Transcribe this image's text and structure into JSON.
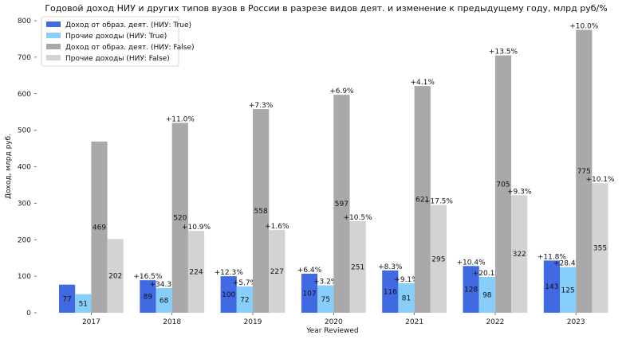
{
  "chart_data": {
    "type": "bar",
    "title": "Годовой доход НИУ и других типов вузов в России в разрезе видов деят. и изменение к предыдущему году, млрд руб/%",
    "xlabel": "Year Reviewed",
    "ylabel": "Доход, млрд руб.",
    "ylim": [
      0,
      800
    ],
    "yticks": [
      0,
      100,
      200,
      300,
      400,
      500,
      600,
      700,
      800
    ],
    "grid": false,
    "legend_position": "top-left",
    "categories": [
      "2017",
      "2018",
      "2019",
      "2020",
      "2021",
      "2022",
      "2023"
    ],
    "series": [
      {
        "name": "Доход от образ. деят. (НИУ: True)",
        "color": "#4169e1",
        "values": [
          77,
          89,
          100,
          107,
          116,
          128,
          143
        ],
        "value_labels": [
          "77",
          "89",
          "100",
          "107",
          "116",
          "128",
          "143"
        ],
        "change_labels": [
          "",
          "+16.5%",
          "+12.3%",
          "+6.4%",
          "+8.3%",
          "+10.4%",
          "+11.8%"
        ]
      },
      {
        "name": "Прочие доходы (НИУ: True)",
        "color": "#87cefa",
        "values": [
          51,
          68,
          72,
          75,
          81,
          98,
          125
        ],
        "value_labels": [
          "51",
          "68",
          "72",
          "75",
          "81",
          "98",
          "125"
        ],
        "change_labels": [
          "",
          "+34.3%",
          "+5.7%",
          "+3.2%",
          "+9.1%",
          "+20.1%",
          "+28.4%"
        ]
      },
      {
        "name": "Доход от образ. деят. (НИУ: False)",
        "color": "#a9a9a9",
        "values": [
          469,
          520,
          558,
          597,
          621,
          705,
          775
        ],
        "value_labels": [
          "469",
          "520",
          "558",
          "597",
          "621",
          "705",
          "775"
        ],
        "change_labels": [
          "",
          "+11.0%",
          "+7.3%",
          "+6.9%",
          "+4.1%",
          "+13.5%",
          "+10.0%"
        ]
      },
      {
        "name": "Прочие доходы (НИУ: False)",
        "color": "#d3d3d3",
        "values": [
          202,
          224,
          227,
          251,
          295,
          322,
          355
        ],
        "value_labels": [
          "202",
          "224",
          "227",
          "251",
          "295",
          "322",
          "355"
        ],
        "change_labels": [
          "",
          "+10.9%",
          "+1.6%",
          "+10.5%",
          "+17.5%",
          "+9.3%",
          "+10.1%"
        ]
      }
    ]
  }
}
